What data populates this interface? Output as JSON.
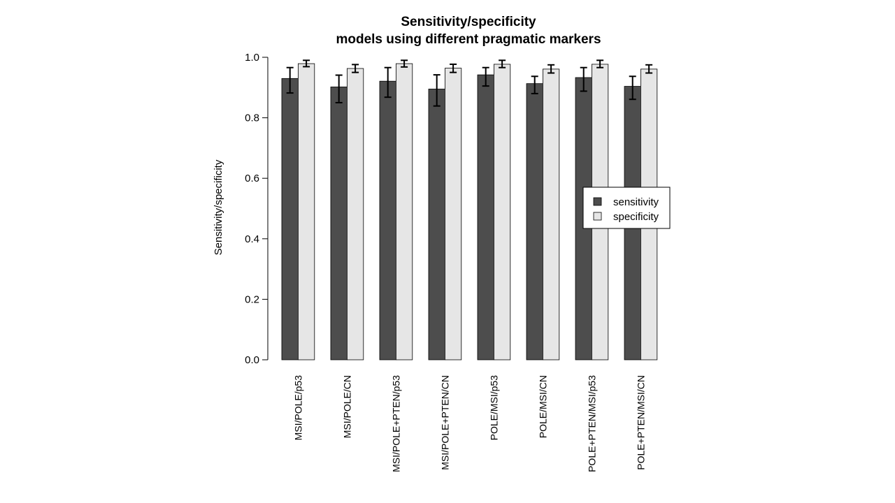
{
  "chart_data": {
    "type": "bar",
    "title_line1": "Sensitivity/specificity",
    "title_line2": "models using different pragmatic markers",
    "xlabel": "",
    "ylabel": "Sensitivity/specificity",
    "ylim": [
      0,
      1
    ],
    "yticks": [
      "0.0",
      "0.2",
      "0.4",
      "0.6",
      "0.8",
      "1.0"
    ],
    "categories": [
      "MSI/POLE/p53",
      "MSI/POLE/CN",
      "MSI/POLE+PTEN/p53",
      "MSI/POLE+PTEN/CN",
      "POLE/MSI/p53",
      "POLE/MSI/CN",
      "POLE+PTEN/MSI/p53",
      "POLE+PTEN/MSI/CN"
    ],
    "series": [
      {
        "name": "sensitivity",
        "color": "#4d4d4d",
        "values": [
          0.93,
          0.902,
          0.921,
          0.895,
          0.942,
          0.913,
          0.933,
          0.904
        ],
        "lower": [
          0.882,
          0.85,
          0.868,
          0.839,
          0.905,
          0.88,
          0.888,
          0.861
        ],
        "upper": [
          0.966,
          0.941,
          0.966,
          0.942,
          0.966,
          0.937,
          0.966,
          0.937
        ]
      },
      {
        "name": "specificity",
        "color": "#e6e6e6",
        "values": [
          0.979,
          0.963,
          0.979,
          0.964,
          0.977,
          0.961,
          0.977,
          0.961
        ],
        "lower": [
          0.969,
          0.95,
          0.968,
          0.95,
          0.966,
          0.948,
          0.966,
          0.948
        ],
        "upper": [
          0.99,
          0.976,
          0.99,
          0.977,
          0.99,
          0.975,
          0.99,
          0.975
        ]
      }
    ],
    "legend": {
      "position": "right",
      "entries": [
        "sensitivity",
        "specificity"
      ]
    },
    "grid": false
  }
}
